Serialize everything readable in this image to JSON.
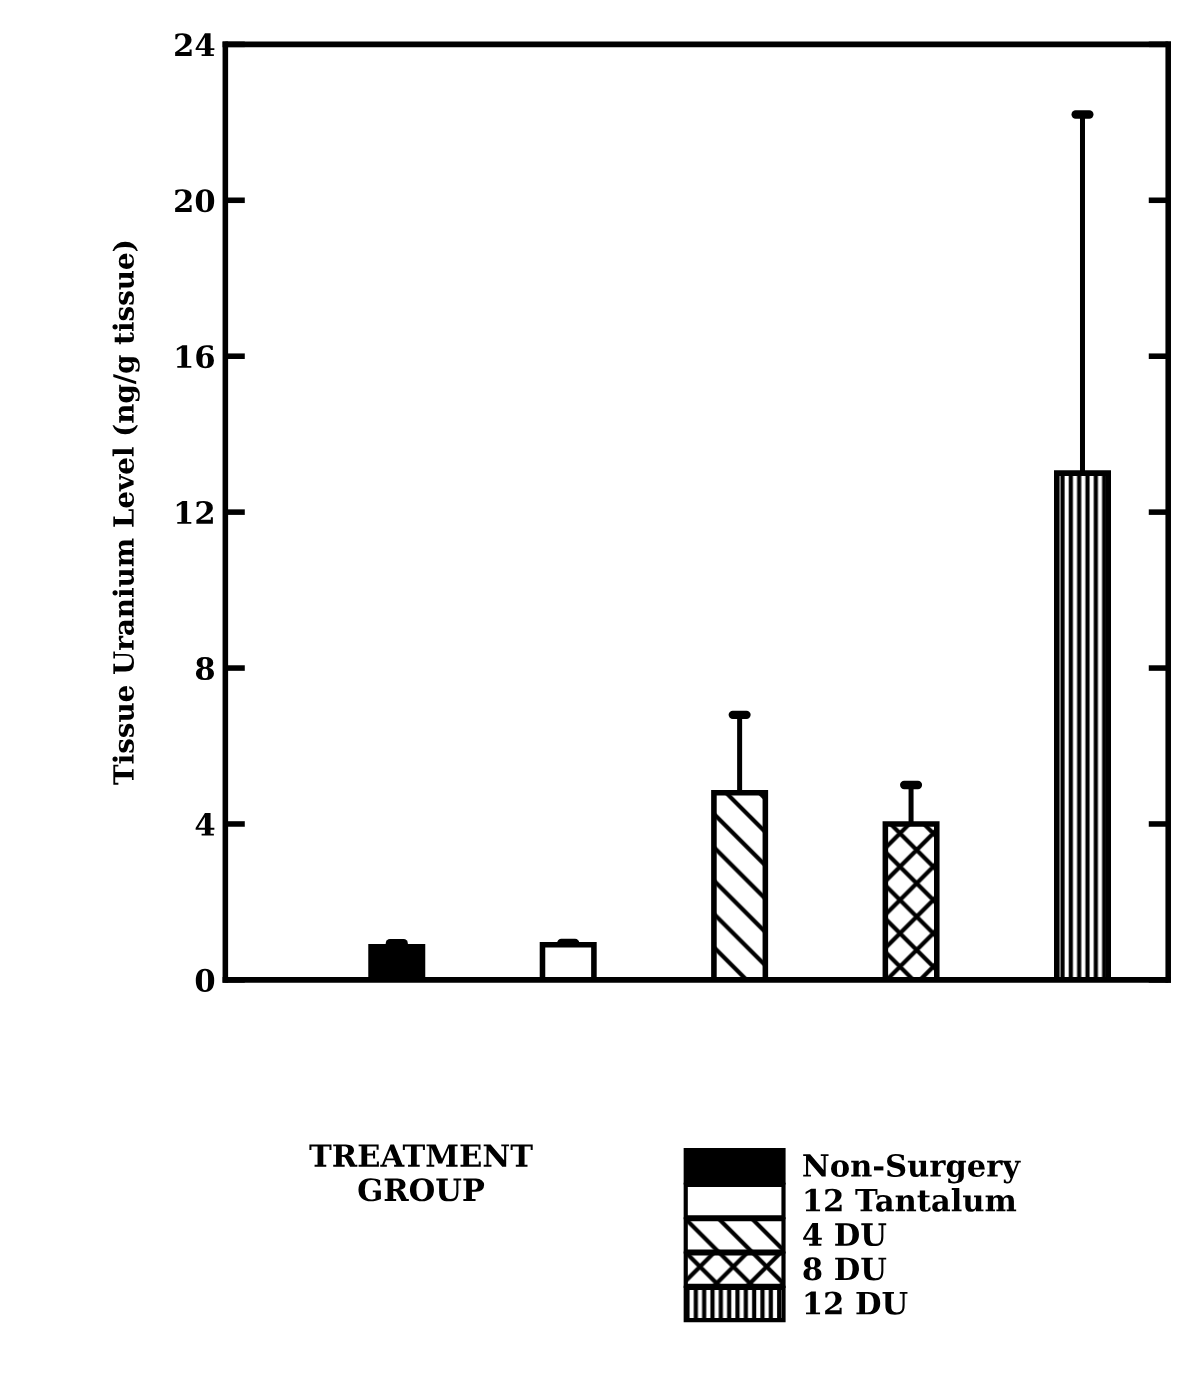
{
  "chart_data": {
    "type": "bar",
    "ylabel": "Tissue Uranium Level (ng/g tissue)",
    "legend_title": "TREATMENT GROUP",
    "categories": [
      null,
      null,
      null,
      null,
      null
    ],
    "series": [
      {
        "name": "Non-Surgery",
        "color": "#000000",
        "values": [
          0.85,
          null,
          null,
          null,
          null
        ],
        "errors": [
          0.09,
          null,
          null,
          null,
          null
        ]
      },
      {
        "name": "12 Tantalum",
        "color": "#ffffff",
        "values": [
          null,
          0.9,
          null,
          null,
          null
        ],
        "errors": [
          null,
          0.05,
          null,
          null,
          null
        ]
      },
      {
        "name": "4 DU",
        "color": "#000000",
        "values": [
          null,
          null,
          4.8,
          null,
          null
        ],
        "errors": [
          null,
          null,
          2.0,
          null,
          null
        ]
      },
      {
        "name": "8 DU",
        "color": "#000000",
        "values": [
          null,
          null,
          null,
          4.0,
          null
        ],
        "errors": [
          null,
          null,
          null,
          1.0,
          null
        ]
      },
      {
        "name": "12 DU",
        "color": "#000000",
        "values": [
          null,
          null,
          null,
          null,
          13.0
        ],
        "errors": [
          null,
          null,
          null,
          null,
          9.2
        ]
      }
    ],
    "ylim": [
      0,
      24
    ],
    "yticks": [
      0,
      4,
      8,
      12,
      16,
      20,
      24
    ],
    "legend": "bottom",
    "grid": false
  }
}
